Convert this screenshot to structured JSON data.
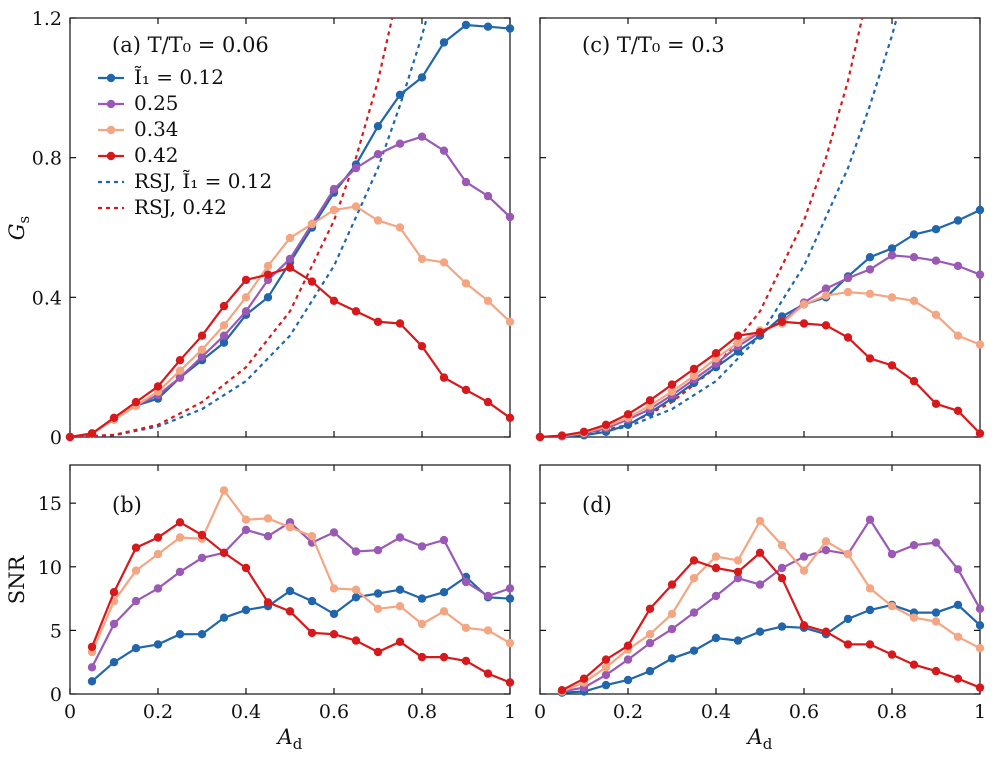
{
  "colors": {
    "blue": "#2166ac",
    "purple": "#9b59b6",
    "orange": "#f4a582",
    "red": "#d7191c"
  },
  "chart_data": {
    "type": "line",
    "x_label_base": "A",
    "x_label_sub": "d",
    "x_ticks": [
      "0",
      "0.2",
      "0.4",
      "0.6",
      "0.8",
      "1"
    ],
    "xlim": [
      0,
      1
    ],
    "panels": [
      {
        "id": "a",
        "label": "(a) T/T₀ = 0.06",
        "ylabel_base": "G",
        "ylabel_sub": "s",
        "ylim": [
          0,
          1.2
        ],
        "y_ticks": [
          0,
          0.4,
          0.8,
          1.2
        ],
        "y_tick_labels": [
          "0",
          "0.4",
          "0.8",
          "1.2"
        ],
        "x": [
          0,
          0.05,
          0.1,
          0.15,
          0.2,
          0.25,
          0.3,
          0.35,
          0.4,
          0.45,
          0.5,
          0.55,
          0.6,
          0.65,
          0.7,
          0.75,
          0.8,
          0.85,
          0.9,
          0.95,
          1.0
        ],
        "series": [
          {
            "name": "Ĩ₁ = 0.12",
            "color": "blue",
            "values": [
              0,
              0.01,
              0.05,
              0.09,
              0.11,
              0.17,
              0.22,
              0.27,
              0.35,
              0.4,
              0.5,
              0.6,
              0.7,
              0.78,
              0.89,
              0.98,
              1.03,
              1.13,
              1.18,
              1.175,
              1.17
            ]
          },
          {
            "name": "0.25",
            "color": "purple",
            "values": [
              0,
              0.01,
              0.05,
              0.09,
              0.12,
              0.17,
              0.23,
              0.29,
              0.36,
              0.45,
              0.51,
              0.61,
              0.71,
              0.77,
              0.81,
              0.84,
              0.86,
              0.82,
              0.73,
              0.69,
              0.63
            ]
          },
          {
            "name": "0.34",
            "color": "orange",
            "values": [
              0,
              0.01,
              0.05,
              0.09,
              0.13,
              0.19,
              0.25,
              0.32,
              0.4,
              0.49,
              0.57,
              0.61,
              0.65,
              0.66,
              0.62,
              0.6,
              0.51,
              0.5,
              0.44,
              0.39,
              0.33
            ]
          },
          {
            "name": "0.42",
            "color": "red",
            "values": [
              0,
              0.01,
              0.055,
              0.1,
              0.145,
              0.22,
              0.29,
              0.375,
              0.45,
              0.465,
              0.485,
              0.445,
              0.39,
              0.36,
              0.33,
              0.325,
              0.26,
              0.17,
              0.135,
              0.1,
              0.055
            ]
          }
        ],
        "rsj": [
          {
            "name": "RSJ, Ĩ₁ = 0.12",
            "color": "blue",
            "x": [
              0,
              0.1,
              0.2,
              0.3,
              0.4,
              0.5,
              0.6,
              0.7,
              0.75,
              0.8,
              0.85,
              0.88
            ],
            "values": [
              0,
              0.005,
              0.03,
              0.08,
              0.16,
              0.29,
              0.49,
              0.77,
              0.95,
              1.15,
              1.38,
              1.55
            ]
          },
          {
            "name": "RSJ, 0.42",
            "color": "red",
            "x": [
              0,
              0.1,
              0.2,
              0.3,
              0.4,
              0.5,
              0.6,
              0.65,
              0.7,
              0.75,
              0.8
            ],
            "values": [
              0,
              0.006,
              0.035,
              0.1,
              0.2,
              0.36,
              0.62,
              0.8,
              1.02,
              1.3,
              1.65
            ]
          }
        ]
      },
      {
        "id": "c",
        "label": "(c) T/T₀ = 0.3",
        "ylim": [
          0,
          1.2
        ],
        "y_ticks": [
          0,
          0.4,
          0.8,
          1.2
        ],
        "x": [
          0,
          0.05,
          0.1,
          0.15,
          0.2,
          0.25,
          0.3,
          0.35,
          0.4,
          0.45,
          0.5,
          0.55,
          0.6,
          0.65,
          0.7,
          0.75,
          0.8,
          0.85,
          0.9,
          0.95,
          1.0
        ],
        "series": [
          {
            "name": "Ĩ₁ = 0.12",
            "color": "blue",
            "values": [
              0,
              0.002,
              0.005,
              0.015,
              0.035,
              0.07,
              0.11,
              0.155,
              0.2,
              0.245,
              0.29,
              0.345,
              0.38,
              0.4,
              0.46,
              0.515,
              0.54,
              0.58,
              0.595,
              0.62,
              0.65
            ]
          },
          {
            "name": "0.25",
            "color": "purple",
            "values": [
              0,
              0.002,
              0.01,
              0.025,
              0.05,
              0.08,
              0.12,
              0.165,
              0.21,
              0.26,
              0.3,
              0.33,
              0.385,
              0.425,
              0.455,
              0.48,
              0.52,
              0.515,
              0.505,
              0.49,
              0.465
            ]
          },
          {
            "name": "0.34",
            "color": "orange",
            "values": [
              0,
              0.003,
              0.012,
              0.03,
              0.055,
              0.09,
              0.13,
              0.175,
              0.225,
              0.27,
              0.305,
              0.325,
              0.38,
              0.405,
              0.415,
              0.41,
              0.4,
              0.39,
              0.35,
              0.29,
              0.265
            ]
          },
          {
            "name": "0.42",
            "color": "red",
            "values": [
              0,
              0.004,
              0.015,
              0.035,
              0.065,
              0.105,
              0.15,
              0.195,
              0.24,
              0.29,
              0.3,
              0.33,
              0.325,
              0.32,
              0.285,
              0.225,
              0.205,
              0.16,
              0.095,
              0.075,
              0.01
            ]
          }
        ],
        "rsj": [
          {
            "name": "RSJ, Ĩ₁ = 0.12",
            "color": "blue",
            "x": [
              0,
              0.1,
              0.2,
              0.3,
              0.4,
              0.5,
              0.6,
              0.7,
              0.75,
              0.8,
              0.85,
              0.88
            ],
            "values": [
              0,
              0.005,
              0.03,
              0.08,
              0.16,
              0.29,
              0.49,
              0.77,
              0.95,
              1.15,
              1.38,
              1.55
            ]
          },
          {
            "name": "RSJ, 0.42",
            "color": "red",
            "x": [
              0,
              0.1,
              0.2,
              0.3,
              0.4,
              0.5,
              0.6,
              0.65,
              0.7,
              0.75,
              0.8
            ],
            "values": [
              0,
              0.006,
              0.035,
              0.1,
              0.2,
              0.36,
              0.62,
              0.8,
              1.02,
              1.3,
              1.65
            ]
          }
        ]
      },
      {
        "id": "b",
        "label": "(b)",
        "ylabel": "SNR",
        "ylim": [
          0,
          18
        ],
        "y_ticks": [
          0,
          5,
          10,
          15
        ],
        "y_tick_labels": [
          "0",
          "5",
          "10",
          "15"
        ],
        "x": [
          0.05,
          0.1,
          0.15,
          0.2,
          0.25,
          0.3,
          0.35,
          0.4,
          0.45,
          0.5,
          0.55,
          0.6,
          0.65,
          0.7,
          0.75,
          0.8,
          0.85,
          0.9,
          0.95,
          1.0
        ],
        "series": [
          {
            "name": "Ĩ₁ = 0.12",
            "color": "blue",
            "values": [
              1.0,
              2.5,
              3.6,
              3.9,
              4.7,
              4.7,
              6.0,
              6.6,
              6.9,
              8.1,
              7.3,
              6.3,
              7.6,
              7.9,
              8.2,
              7.5,
              8.0,
              9.2,
              7.6,
              7.5
            ]
          },
          {
            "name": "0.25",
            "color": "purple",
            "values": [
              2.1,
              5.5,
              7.3,
              8.3,
              9.6,
              10.7,
              11.1,
              12.9,
              12.4,
              13.5,
              11.9,
              12.7,
              11.2,
              11.3,
              12.3,
              11.6,
              12.1,
              8.8,
              7.7,
              8.3
            ]
          },
          {
            "name": "0.34",
            "color": "orange",
            "values": [
              3.3,
              7.3,
              9.7,
              11.0,
              12.3,
              12.2,
              16.0,
              13.7,
              13.8,
              13.1,
              12.4,
              8.3,
              8.2,
              6.7,
              6.9,
              5.5,
              6.5,
              5.2,
              5.0,
              4.0
            ]
          },
          {
            "name": "0.42",
            "color": "red",
            "values": [
              3.7,
              8.0,
              11.5,
              12.3,
              13.5,
              12.5,
              11.1,
              9.9,
              7.2,
              6.5,
              4.8,
              4.7,
              4.2,
              3.3,
              4.1,
              2.9,
              2.9,
              2.6,
              1.6,
              0.9
            ]
          }
        ]
      },
      {
        "id": "d",
        "label": "(d)",
        "ylim": [
          0,
          18
        ],
        "y_ticks": [
          0,
          5,
          10,
          15
        ],
        "x": [
          0.05,
          0.1,
          0.15,
          0.2,
          0.25,
          0.3,
          0.35,
          0.4,
          0.45,
          0.5,
          0.55,
          0.6,
          0.65,
          0.7,
          0.75,
          0.8,
          0.85,
          0.9,
          0.95,
          1.0
        ],
        "series": [
          {
            "name": "Ĩ₁ = 0.12",
            "color": "blue",
            "values": [
              0.1,
              0.2,
              0.7,
              1.1,
              1.8,
              2.8,
              3.4,
              4.4,
              4.2,
              4.9,
              5.3,
              5.2,
              4.7,
              5.9,
              6.6,
              7.0,
              6.4,
              6.4,
              7.0,
              5.4
            ]
          },
          {
            "name": "0.25",
            "color": "purple",
            "values": [
              0.2,
              0.5,
              1.5,
              2.7,
              4.0,
              5.1,
              6.4,
              7.7,
              9.1,
              8.6,
              9.9,
              10.8,
              11.3,
              11.0,
              13.7,
              11.0,
              11.7,
              11.9,
              9.8,
              6.7
            ]
          },
          {
            "name": "0.34",
            "color": "orange",
            "values": [
              0.2,
              0.9,
              2.1,
              3.5,
              4.7,
              6.3,
              9.1,
              10.8,
              10.5,
              13.6,
              11.7,
              9.7,
              12.0,
              11.0,
              8.3,
              6.9,
              6.0,
              5.7,
              4.5,
              3.6
            ]
          },
          {
            "name": "0.42",
            "color": "red",
            "values": [
              0.3,
              1.2,
              2.7,
              3.8,
              6.7,
              8.6,
              10.5,
              9.9,
              9.6,
              11.1,
              9.1,
              5.4,
              4.9,
              3.9,
              3.9,
              3.1,
              2.3,
              1.8,
              1.2,
              0.5
            ]
          }
        ]
      }
    ],
    "legend": {
      "placement": "top-left of panel (a)",
      "entries": [
        {
          "text": "Ĩ₁ = 0.12",
          "color": "blue",
          "style": "solid-marker"
        },
        {
          "text": "0.25",
          "color": "purple",
          "style": "solid-marker"
        },
        {
          "text": "0.34",
          "color": "orange",
          "style": "solid-marker"
        },
        {
          "text": "0.42",
          "color": "red",
          "style": "solid-marker"
        },
        {
          "text": "RSJ, Ĩ₁ = 0.12",
          "color": "blue",
          "style": "dotted"
        },
        {
          "text": "RSJ, 0.42",
          "color": "red",
          "style": "dotted"
        }
      ]
    }
  }
}
